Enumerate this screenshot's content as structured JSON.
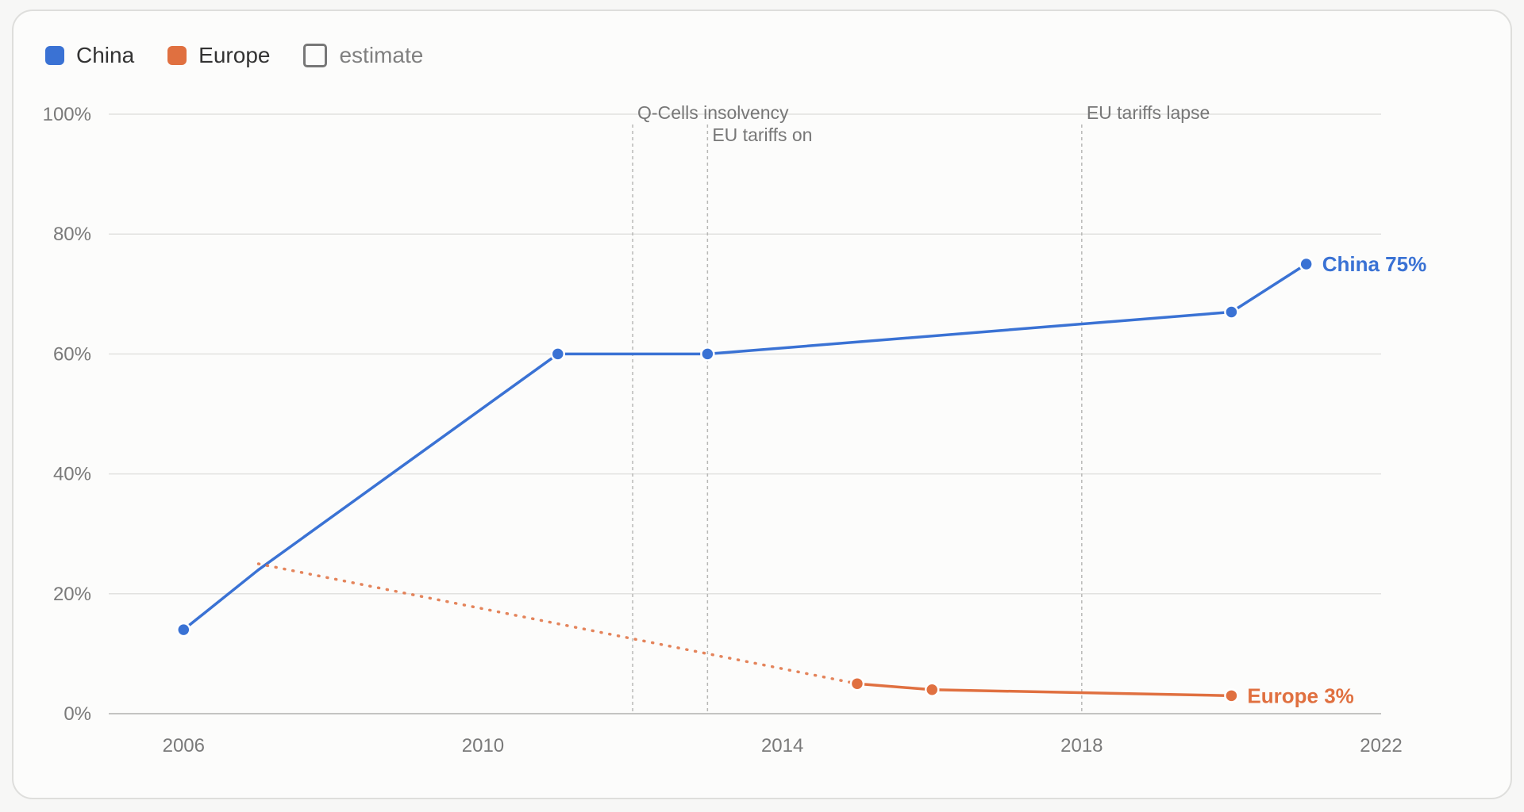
{
  "legend": [
    {
      "label": "China",
      "color": "#3a72d4",
      "kind": "solid"
    },
    {
      "label": "Europe",
      "color": "#e07040",
      "kind": "solid"
    },
    {
      "label": "estimate",
      "color": "#777777",
      "kind": "outline"
    }
  ],
  "chart_data": {
    "type": "line",
    "xlim": [
      2005,
      2022
    ],
    "ylim": [
      0,
      100
    ],
    "x_ticks": [
      2006,
      2010,
      2014,
      2018,
      2022
    ],
    "y_ticks": [
      0,
      20,
      40,
      60,
      80,
      100
    ],
    "y_tick_labels": [
      "0%",
      "20%",
      "40%",
      "60%",
      "80%",
      "100%"
    ],
    "grid": true,
    "legend_position": "top-left",
    "series": [
      {
        "name": "China",
        "color": "#3a72d4",
        "end_label": "China 75%",
        "points": [
          {
            "x": 2006,
            "y": 14,
            "marker": true
          },
          {
            "x": 2007,
            "y": 24,
            "marker": false
          },
          {
            "x": 2011,
            "y": 60,
            "marker": true
          },
          {
            "x": 2013,
            "y": 60,
            "marker": true
          },
          {
            "x": 2020,
            "y": 67,
            "marker": true
          },
          {
            "x": 2021,
            "y": 75,
            "marker": true
          }
        ],
        "estimate_segments": []
      },
      {
        "name": "Europe",
        "color": "#e07040",
        "end_label": "Europe 3%",
        "points": [
          {
            "x": 2007,
            "y": 25,
            "marker": false
          },
          {
            "x": 2015,
            "y": 5,
            "marker": true
          },
          {
            "x": 2016,
            "y": 4,
            "marker": true
          },
          {
            "x": 2020,
            "y": 3,
            "marker": true
          }
        ],
        "estimate_segments": [
          [
            0,
            1
          ]
        ]
      }
    ],
    "annotations": [
      {
        "x": 2012,
        "label": "Q-Cells insolvency",
        "row": 0
      },
      {
        "x": 2013,
        "label": "EU tariffs on",
        "row": 1
      },
      {
        "x": 2018,
        "label": "EU tariffs lapse",
        "row": 0
      }
    ]
  }
}
